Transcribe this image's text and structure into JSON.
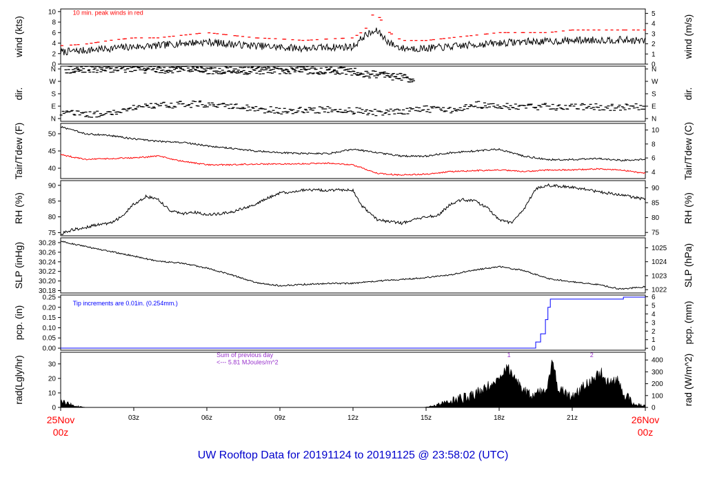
{
  "footer_title": "UW Rooftop Data for 20191124  to  20191125 @ 23:58:02  (UTC)",
  "colors": {
    "main": "#000000",
    "red": "#ff0000",
    "blue": "#0000ff",
    "purple": "#9933cc",
    "title": "#0000cc"
  },
  "x_axis": {
    "ticks": [
      {
        "hour": 0,
        "line1": "25Nov",
        "line2": "00z",
        "color": "red"
      },
      {
        "hour": 3,
        "line1": "03z",
        "line2": "",
        "color": "black"
      },
      {
        "hour": 6,
        "line1": "06z",
        "line2": "",
        "color": "black"
      },
      {
        "hour": 9,
        "line1": "09z",
        "line2": "",
        "color": "black"
      },
      {
        "hour": 12,
        "line1": "12z",
        "line2": "",
        "color": "black"
      },
      {
        "hour": 15,
        "line1": "15z",
        "line2": "",
        "color": "black"
      },
      {
        "hour": 18,
        "line1": "18z",
        "line2": "",
        "color": "black"
      },
      {
        "hour": 21,
        "line1": "21z",
        "line2": "",
        "color": "black"
      },
      {
        "hour": 24,
        "line1": "26Nov",
        "line2": "00z",
        "color": "red"
      }
    ]
  },
  "chart_data": [
    {
      "type": "line",
      "ylabel_left": "wind (kts)",
      "ylabel_right": "wind (m/s)",
      "ylim": [
        0,
        10.5
      ],
      "left_ticks": [
        "0",
        "2",
        "4",
        "6",
        "8",
        "10"
      ],
      "right_ticks": [
        "0",
        "1",
        "2",
        "3",
        "4",
        "5"
      ],
      "annotations": [
        {
          "text": "10 min. peak winds in red",
          "color": "red",
          "hour": 0.5,
          "y": 9.8
        }
      ],
      "series": [
        {
          "style": "line",
          "color": "main",
          "noise": 0.7,
          "x": [
            0,
            1,
            2,
            3,
            4,
            5,
            6,
            7,
            8,
            9,
            10,
            11,
            12,
            12.5,
            13,
            13.5,
            14,
            15,
            16,
            17,
            18,
            19,
            20,
            21,
            22,
            23,
            24
          ],
          "y": [
            2.3,
            2.6,
            3.0,
            3.3,
            3.5,
            4.0,
            4.2,
            3.8,
            3.5,
            3.2,
            3.0,
            3.2,
            3.3,
            5.5,
            6.3,
            4.0,
            3.0,
            3.0,
            3.3,
            3.7,
            4.0,
            4.3,
            4.3,
            4.5,
            4.6,
            4.6,
            4.4
          ]
        },
        {
          "style": "dash",
          "color": "red",
          "x": [
            0,
            1,
            2,
            3,
            4,
            5,
            6,
            7,
            8,
            9,
            10,
            11,
            12,
            12.5,
            12.9,
            13.5,
            14,
            15,
            16,
            17,
            18,
            19,
            20,
            21,
            22,
            23,
            24
          ],
          "y": [
            3.5,
            3.8,
            4.5,
            5.0,
            5.0,
            5.5,
            6.0,
            5.5,
            5.0,
            4.8,
            4.5,
            4.8,
            5.0,
            6.5,
            10.2,
            6.0,
            4.5,
            4.5,
            5.0,
            5.5,
            6.0,
            6.0,
            6.0,
            6.5,
            6.5,
            6.5,
            6.5
          ]
        }
      ]
    },
    {
      "type": "scatter",
      "ylabel_left": "dir.",
      "ylabel_right": "dir.",
      "ylim": [
        0,
        360
      ],
      "left_ticks": [
        "N",
        "E",
        "S",
        "W",
        "N"
      ],
      "right_ticks": [
        "N",
        "E",
        "S",
        "W",
        "N"
      ],
      "series": [
        {
          "style": "dash",
          "color": "main",
          "noise": 22,
          "x": [
            0,
            1,
            2,
            3,
            4,
            5,
            6,
            7,
            8,
            9,
            10,
            11,
            12,
            13,
            14,
            15,
            16,
            17,
            18,
            19,
            20,
            21,
            22,
            23,
            24
          ],
          "y": [
            60,
            40,
            60,
            85,
            100,
            110,
            115,
            100,
            80,
            70,
            70,
            75,
            70,
            55,
            65,
            80,
            75,
            110,
            100,
            90,
            95,
            95,
            95,
            90,
            95
          ]
        },
        {
          "style": "dash",
          "color": "main",
          "noise": 25,
          "x": [
            0.2,
            0.7,
            1.0,
            8.3,
            9.0,
            11.8,
            12.5,
            13.2,
            14.0,
            14.5
          ],
          "y": [
            340,
            335,
            345,
            330,
            335,
            330,
            310,
            300,
            290,
            270
          ]
        }
      ]
    },
    {
      "type": "line",
      "ylabel_left": "Tair/Tdew (F)",
      "ylabel_right": "Tair/Tdew (C)",
      "ylim": [
        37,
        53
      ],
      "left_ticks": [
        "40",
        "45",
        "50"
      ],
      "right_ticks": [
        "4",
        "6",
        "8",
        "10"
      ],
      "series": [
        {
          "style": "line",
          "color": "main",
          "noise": 0.25,
          "x": [
            0,
            1,
            2,
            3,
            4,
            5,
            6,
            7,
            8,
            9,
            10,
            11,
            12,
            13,
            14,
            15,
            16,
            17,
            18,
            19,
            20,
            21,
            22,
            23,
            24
          ],
          "y": [
            52.0,
            50.0,
            49.5,
            48.5,
            47.8,
            47.5,
            46.5,
            45.8,
            45.0,
            44.5,
            44.3,
            44.2,
            45.5,
            44.5,
            43.5,
            43.5,
            44.5,
            45.0,
            45.5,
            43.5,
            42.5,
            42.5,
            42.8,
            42.3,
            42.5
          ]
        },
        {
          "style": "line",
          "color": "red",
          "noise": 0.2,
          "x": [
            0,
            1,
            2,
            3,
            4,
            5,
            6,
            7,
            8,
            9,
            10,
            11,
            12,
            13,
            14,
            15,
            16,
            17,
            18,
            19,
            20,
            21,
            22,
            23,
            24
          ],
          "y": [
            44.0,
            42.5,
            42.8,
            43.0,
            43.5,
            42.0,
            41.0,
            41.0,
            41.2,
            41.2,
            41.3,
            41.5,
            41.0,
            38.5,
            38.0,
            38.3,
            39.0,
            39.3,
            39.5,
            39.0,
            39.5,
            39.5,
            39.8,
            39.5,
            38.5
          ]
        }
      ]
    },
    {
      "type": "line",
      "ylabel_left": "RH (%)",
      "ylabel_right": "RH (%)",
      "ylim": [
        74,
        91.5
      ],
      "left_ticks": [
        "75",
        "80",
        "85",
        "90"
      ],
      "right_ticks": [
        "75",
        "80",
        "85",
        "90"
      ],
      "series": [
        {
          "style": "line",
          "color": "main",
          "noise": 0.45,
          "x": [
            0,
            0.5,
            1,
            1.5,
            2,
            2.5,
            3,
            3.5,
            4,
            4.5,
            5,
            5.5,
            6,
            7,
            8,
            8.5,
            9,
            10,
            11,
            12,
            12.3,
            13,
            14,
            14.5,
            15,
            15.5,
            16,
            16.5,
            17,
            17.5,
            18,
            18.5,
            19,
            19.5,
            20,
            21,
            22,
            23,
            24
          ],
          "y": [
            74.5,
            76,
            76.5,
            77.5,
            78,
            80,
            84,
            86.5,
            85.5,
            82,
            81,
            81.5,
            80.5,
            81.5,
            84,
            86,
            87.5,
            88.5,
            88.5,
            88.5,
            84,
            79,
            78,
            79,
            80,
            80.5,
            84,
            85.5,
            85,
            83,
            79,
            78,
            82,
            89,
            90,
            89.5,
            88,
            87,
            85.5
          ]
        }
      ]
    },
    {
      "type": "line",
      "ylabel_left": "SLP (inHg)",
      "ylabel_right": "SLP (hPa)",
      "ylim": [
        30.175,
        30.29
      ],
      "left_ticks": [
        "30.18",
        "30.20",
        "30.22",
        "30.24",
        "30.26",
        "30.28"
      ],
      "right_ticks": [
        "1022",
        "1023",
        "1024",
        "1025"
      ],
      "series": [
        {
          "style": "line",
          "color": "main",
          "noise": 0.0015,
          "x": [
            0,
            1,
            2,
            3,
            4,
            5,
            6,
            7,
            8,
            9,
            10,
            11,
            12,
            13,
            14,
            15,
            16,
            17,
            18,
            19,
            20,
            21,
            22,
            23,
            24
          ],
          "y": [
            30.283,
            30.272,
            30.262,
            30.252,
            30.241,
            30.237,
            30.227,
            30.213,
            30.197,
            30.19,
            30.193,
            30.195,
            30.195,
            30.2,
            30.203,
            30.207,
            30.213,
            30.223,
            30.23,
            30.222,
            30.205,
            30.198,
            30.193,
            30.183,
            30.188
          ]
        }
      ]
    },
    {
      "type": "area",
      "ylabel_left": "pcp. (in)",
      "ylabel_right": "pcp. (mm)",
      "ylim": [
        -0.01,
        0.26
      ],
      "left_ticks": [
        "0.00",
        "0.05",
        "0.10",
        "0.15",
        "0.20",
        "0.25"
      ],
      "right_ticks": [
        "0",
        "1",
        "2",
        "3",
        "4",
        "5",
        "6"
      ],
      "annotations": [
        {
          "text": "Tip increments are 0.01in. (0.254mm.)",
          "color": "blue",
          "hour": 0.5,
          "y": 0.22
        }
      ],
      "series": [
        {
          "style": "step",
          "color": "blue",
          "x": [
            0,
            19.3,
            19.5,
            19.7,
            19.9,
            20.0,
            20.1,
            21.0,
            23.0,
            23.1,
            24
          ],
          "y": [
            0,
            0,
            0.03,
            0.07,
            0.14,
            0.2,
            0.24,
            0.24,
            0.24,
            0.25,
            0.25
          ]
        }
      ]
    },
    {
      "type": "area",
      "ylabel_left": "rad(Lgly/hr)",
      "ylabel_right": "rad (W/m^2)",
      "ylim": [
        0,
        38
      ],
      "left_ticks": [
        "0",
        "10",
        "20",
        "30"
      ],
      "right_ticks": [
        "0",
        "100",
        "200",
        "300",
        "400"
      ],
      "annotations": [
        {
          "text": "Sum of previous day",
          "color": "purple",
          "hour": 6.4,
          "y": 36
        },
        {
          "text": "<--- 5.81 MJoules/m^2",
          "color": "purple",
          "hour": 6.4,
          "y": 31
        },
        {
          "text": "1",
          "color": "purple",
          "hour": 18.4,
          "y": 36
        },
        {
          "text": "2",
          "color": "purple",
          "hour": 21.8,
          "y": 36
        }
      ],
      "series": [
        {
          "style": "area",
          "color": "main",
          "noise": 4,
          "x": [
            0,
            0.3,
            0.6,
            0.9,
            1.0,
            1.1,
            14.9,
            15.3,
            16,
            16.5,
            17,
            17.5,
            18,
            18.3,
            18.5,
            18.8,
            19.0,
            19.3,
            19.7,
            20.0,
            20.2,
            20.4,
            20.7,
            21.0,
            21.3,
            21.7,
            22.0,
            22.2,
            22.5,
            22.8,
            23.1,
            23.4,
            23.7,
            24
          ],
          "y": [
            3.5,
            2.5,
            1.0,
            0.3,
            0.1,
            0,
            0,
            1,
            4,
            6,
            9,
            14,
            20,
            28,
            24,
            16,
            12,
            8,
            10,
            16,
            34,
            14,
            9,
            7,
            12,
            18,
            22,
            24,
            16,
            20,
            10,
            4,
            2,
            1
          ]
        }
      ]
    }
  ]
}
